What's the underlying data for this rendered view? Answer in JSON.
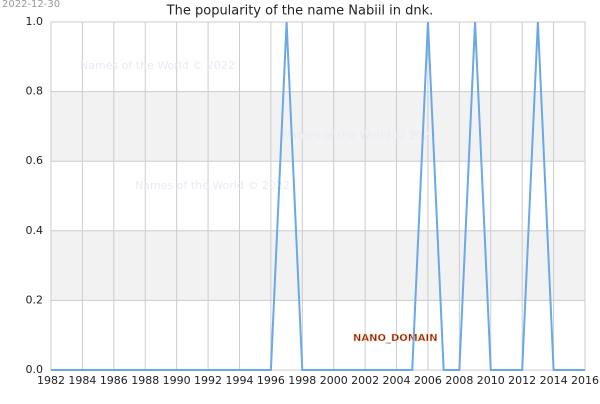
{
  "chart_data": {
    "type": "line",
    "title": "The popularity of the name Nabiil in dnk.",
    "x": [
      1982,
      1983,
      1984,
      1985,
      1986,
      1987,
      1988,
      1989,
      1990,
      1991,
      1992,
      1993,
      1994,
      1995,
      1996,
      1997,
      1998,
      1999,
      2000,
      2001,
      2002,
      2003,
      2004,
      2005,
      2006,
      2007,
      2008,
      2009,
      2010,
      2011,
      2012,
      2013,
      2014,
      2015,
      2016
    ],
    "series": [
      {
        "name": "Nabiil",
        "color": "#6aa8e8",
        "values": [
          0,
          0,
          0,
          0,
          0,
          0,
          0,
          0,
          0,
          0,
          0,
          0,
          0,
          0,
          0,
          1,
          0,
          0,
          0,
          0,
          0,
          0,
          0,
          0,
          1,
          0,
          0,
          1,
          0,
          0,
          0,
          1,
          0,
          0,
          0
        ]
      }
    ],
    "xlim": [
      1982,
      2016
    ],
    "xticks": [
      1982,
      1984,
      1986,
      1988,
      1990,
      1992,
      1994,
      1996,
      1998,
      2000,
      2002,
      2004,
      2006,
      2008,
      2010,
      2012,
      2014,
      2016
    ],
    "ylim": [
      0,
      1
    ],
    "yticks": [
      {
        "value": 0,
        "label": "0.0"
      },
      {
        "value": 0.2,
        "label": "0.2"
      },
      {
        "value": 0.4,
        "label": "0.4"
      },
      {
        "value": 0.6,
        "label": "0.6"
      },
      {
        "value": 0.8,
        "label": "0.8"
      },
      {
        "value": 1,
        "label": "1.0"
      }
    ],
    "grid": true,
    "annotations": {
      "date": "2022-12-30",
      "watermark": "Names of the World © 2022",
      "domain": "NANO_DOMAIN"
    }
  }
}
